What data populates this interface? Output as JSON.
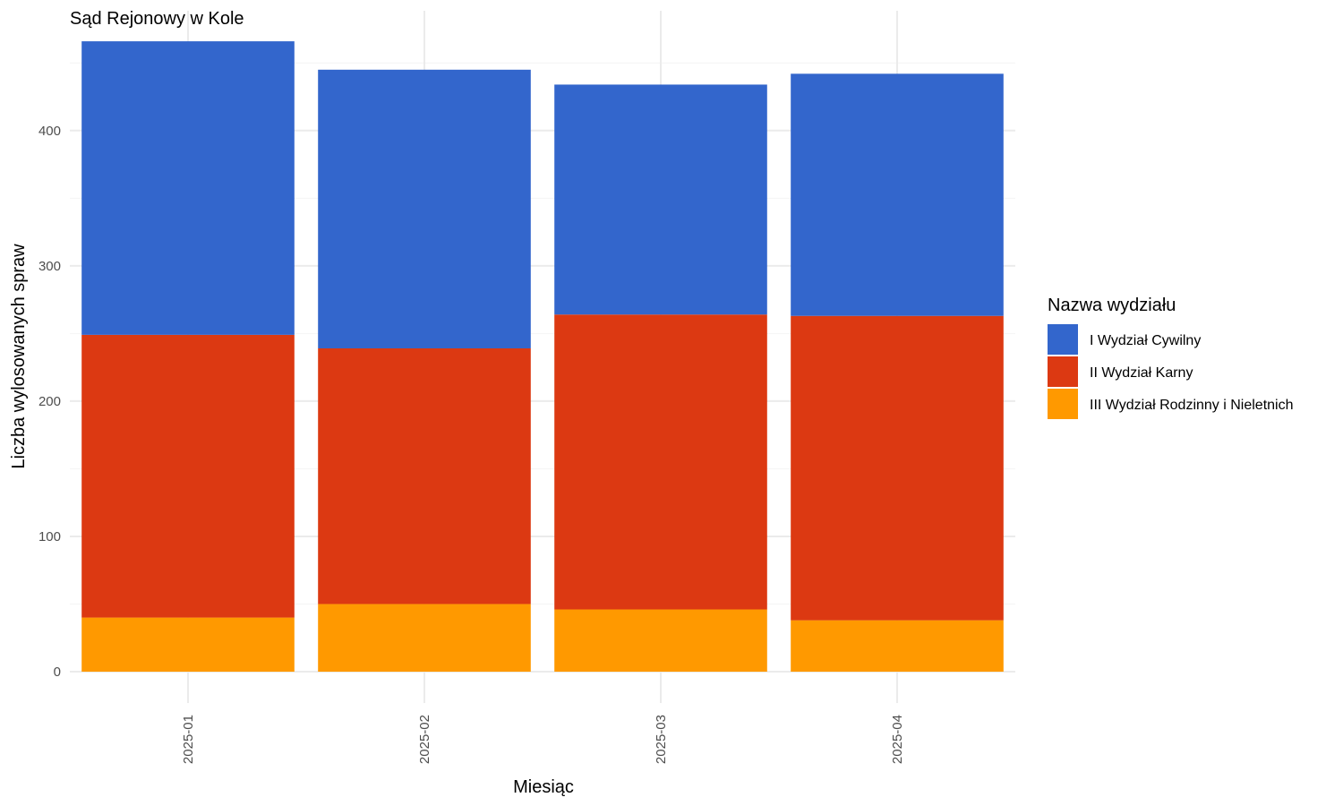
{
  "chart_data": {
    "type": "bar",
    "stacked": true,
    "title": "Sąd Rejonowy w Kole",
    "xlabel": "Miesiąc",
    "ylabel": "Liczba wylosowanych spraw",
    "categories": [
      "2025-01",
      "2025-02",
      "2025-03",
      "2025-04"
    ],
    "series": [
      {
        "name": "I Wydział Cywilny",
        "color": "#3366CC",
        "values": [
          217,
          206,
          170,
          179
        ]
      },
      {
        "name": "II Wydział Karny",
        "color": "#DC3912",
        "values": [
          209,
          189,
          218,
          225
        ]
      },
      {
        "name": "III Wydział Rodzinny i Nieletnich",
        "color": "#FF9900",
        "values": [
          40,
          50,
          46,
          38
        ]
      }
    ],
    "stack_order_bottom_to_top": [
      "III Wydział Rodzinny i Nieletnich",
      "II Wydział Karny",
      "I Wydział Cywilny"
    ],
    "ylim": [
      0,
      466
    ],
    "yticks": [
      0,
      100,
      200,
      300,
      400
    ],
    "grid": true,
    "legend": {
      "title": "Nazwa wydziału",
      "placement": "right"
    }
  }
}
